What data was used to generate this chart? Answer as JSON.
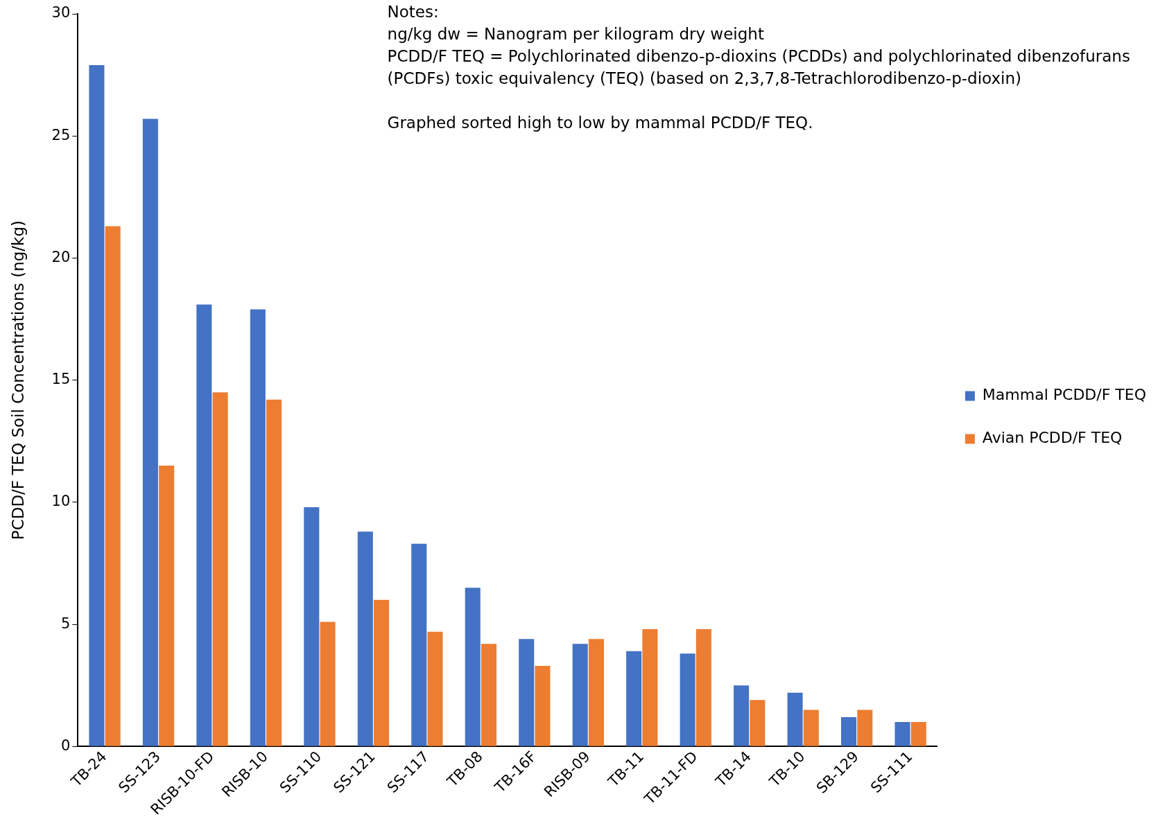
{
  "chart_data": {
    "type": "bar",
    "ylabel": "PCDD/F TEQ Soil Concentrations (ng/kg)",
    "categories": [
      "TB-24",
      "SS-123",
      "RISB-10-FD",
      "RISB-10",
      "SS-110",
      "SS-121",
      "SS-117",
      "TB-08",
      "TB-16F",
      "RISB-09",
      "TB-11",
      "TB-11-FD",
      "TB-14",
      "TB-10",
      "SB-129",
      "SS-111"
    ],
    "series": [
      {
        "name": "Mammal PCDD/F TEQ",
        "color": "#4472c4",
        "values": [
          27.9,
          25.7,
          18.1,
          17.9,
          9.8,
          8.8,
          8.3,
          6.5,
          4.4,
          4.2,
          3.9,
          3.8,
          2.5,
          2.2,
          1.2,
          1.0
        ]
      },
      {
        "name": "Avian PCDD/F TEQ",
        "color": "#ed7d31",
        "values": [
          21.3,
          11.5,
          14.5,
          14.2,
          5.1,
          6.0,
          4.7,
          4.2,
          3.3,
          4.4,
          4.8,
          4.8,
          1.9,
          1.5,
          1.5,
          1.0
        ]
      }
    ],
    "ylim": [
      0,
      30
    ],
    "yticks": [
      0,
      5,
      10,
      15,
      20,
      25,
      30
    ],
    "grid": false,
    "legend": "right",
    "annotations": [
      "Notes:",
      "ng/kg dw = Nanogram per kilogram dry weight",
      "PCDD/F TEQ = Polychlorinated dibenzo-p-dioxins (PCDDs) and polychlorinated dibenzofurans (PCDFs) toxic equivalency (TEQ) (based on 2,3,7,8-Tetrachlorodibenzo-p-dioxin)",
      "Graphed sorted high to low by mammal PCDD/F TEQ."
    ]
  }
}
